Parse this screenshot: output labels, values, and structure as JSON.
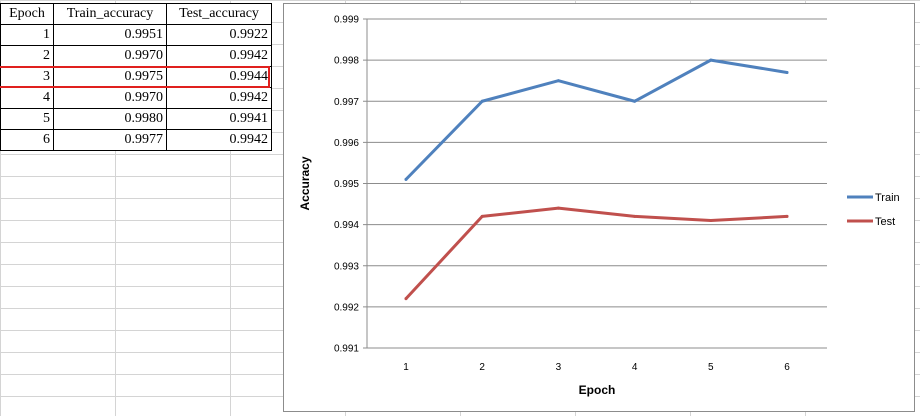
{
  "table": {
    "headers": [
      "Epoch",
      "Train_accuracy",
      "Test_accuracy"
    ],
    "rows": [
      [
        "1",
        "0.9951",
        "0.9922"
      ],
      [
        "2",
        "0.9970",
        "0.9942"
      ],
      [
        "3",
        "0.9975",
        "0.9944"
      ],
      [
        "4",
        "0.9970",
        "0.9942"
      ],
      [
        "5",
        "0.9980",
        "0.9941"
      ],
      [
        "6",
        "0.9977",
        "0.9942"
      ]
    ],
    "selected_row": 3
  },
  "chart_data": {
    "type": "line",
    "x": [
      1,
      2,
      3,
      4,
      5,
      6
    ],
    "series": [
      {
        "name": "Train",
        "color": "#4f81bd",
        "values": [
          0.9951,
          0.997,
          0.9975,
          0.997,
          0.998,
          0.9977
        ]
      },
      {
        "name": "Test",
        "color": "#c0504d",
        "values": [
          0.9922,
          0.9942,
          0.9944,
          0.9942,
          0.9941,
          0.9942
        ]
      }
    ],
    "title": "",
    "xlabel": "Epoch",
    "ylabel": "Accuracy",
    "ylim": [
      0.991,
      0.999
    ],
    "yticks": [
      "0.991",
      "0.992",
      "0.993",
      "0.994",
      "0.995",
      "0.996",
      "0.997",
      "0.998",
      "0.999"
    ],
    "xticks": [
      "1",
      "2",
      "3",
      "4",
      "5",
      "6"
    ],
    "grid": true,
    "legend_position": "right"
  }
}
